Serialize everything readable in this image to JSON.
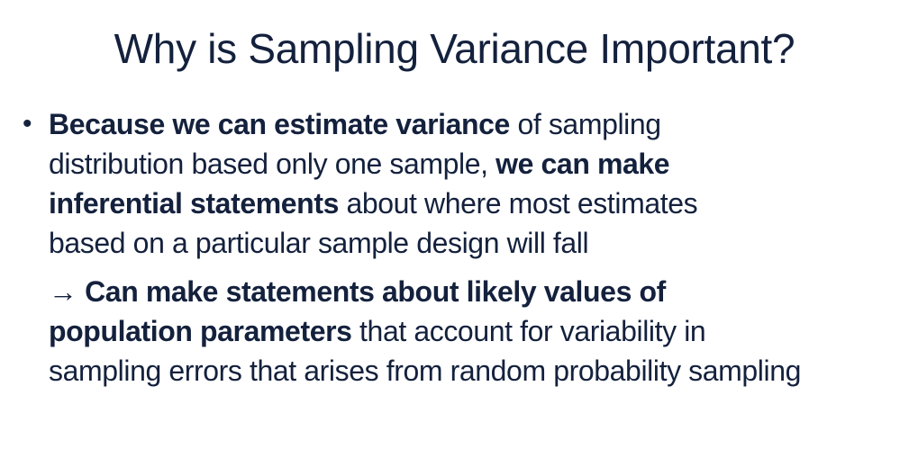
{
  "slide": {
    "title": "Why is Sampling Variance Important?",
    "bullet_glyph": "•",
    "lines": [
      [
        {
          "b": "Because we can estimate variance"
        },
        {
          "t": " of sampling"
        }
      ],
      [
        {
          "t": "distribution based only one sample, "
        },
        {
          "b": "we can make"
        }
      ],
      [
        {
          "b": "inferential statements"
        },
        {
          "t": " about where most estimates"
        }
      ],
      [
        {
          "t": "based on a particular sample design will fall"
        }
      ],
      [
        {
          "t": "→ "
        },
        {
          "b": "Can make statements about likely values of"
        }
      ],
      [
        {
          "b": "population parameters"
        },
        {
          "t": " that account for variability in"
        }
      ],
      [
        {
          "t": "sampling errors that arises from random probability sampling"
        }
      ]
    ]
  }
}
